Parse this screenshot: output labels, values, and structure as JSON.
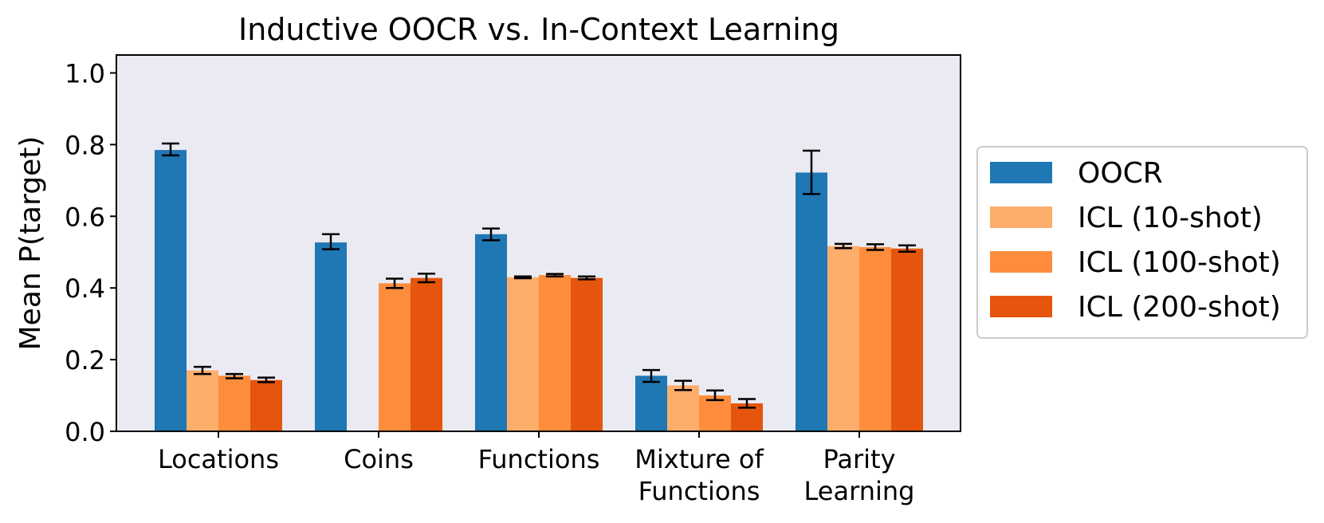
{
  "chart_data": {
    "type": "bar",
    "title": "Inductive OOCR vs. In-Context Learning",
    "ylabel": "Mean P(target)",
    "xlabel": "",
    "ylim": [
      0,
      1.05
    ],
    "yticks": [
      0.0,
      0.2,
      0.4,
      0.6,
      0.8,
      1.0
    ],
    "ytick_labels": [
      "0.0",
      "0.2",
      "0.4",
      "0.6",
      "0.8",
      "1.0"
    ],
    "grid": false,
    "legend_position": "outside right",
    "background": "#eaeaf2",
    "categories": [
      [
        "Locations"
      ],
      [
        "Coins"
      ],
      [
        "Functions"
      ],
      [
        "Mixture of",
        "Functions"
      ],
      [
        "Parity",
        "Learning"
      ]
    ],
    "series": [
      {
        "name": "OOCR",
        "color": "#1f77b4",
        "values": [
          0.785,
          0.527,
          0.55,
          0.155,
          0.722
        ],
        "error_low": [
          0.77,
          0.508,
          0.533,
          0.138,
          0.662
        ],
        "error_high": [
          0.803,
          0.55,
          0.566,
          0.171,
          0.783
        ]
      },
      {
        "name": "ICL (10-shot)",
        "color": "#fdae6b",
        "values": [
          0.17,
          null,
          0.43,
          0.128,
          0.517
        ],
        "error_low": [
          0.16,
          null,
          0.427,
          0.115,
          0.511
        ],
        "error_high": [
          0.18,
          null,
          0.432,
          0.141,
          0.523
        ]
      },
      {
        "name": "ICL (100-shot)",
        "color": "#fd8d3c",
        "values": [
          0.155,
          0.413,
          0.436,
          0.1,
          0.514
        ],
        "error_low": [
          0.148,
          0.4,
          0.432,
          0.087,
          0.506
        ],
        "error_high": [
          0.16,
          0.426,
          0.439,
          0.114,
          0.522
        ]
      },
      {
        "name": "ICL (200-shot)",
        "color": "#e6550d",
        "values": [
          0.143,
          0.428,
          0.428,
          0.078,
          0.51
        ],
        "error_low": [
          0.137,
          0.416,
          0.424,
          0.066,
          0.501
        ],
        "error_high": [
          0.15,
          0.44,
          0.432,
          0.09,
          0.519
        ]
      }
    ]
  }
}
